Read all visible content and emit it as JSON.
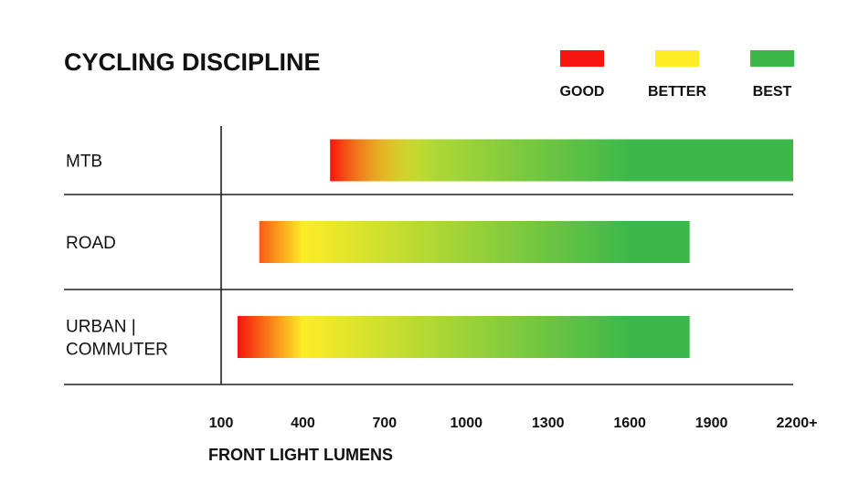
{
  "chart_data": {
    "type": "bar",
    "orientation": "horizontal",
    "title": "CYCLING DISCIPLINE",
    "xlabel": "FRONT LIGHT LUMENS",
    "ylabel": "",
    "xlim": [
      100,
      2200
    ],
    "x_ticks": [
      {
        "value": 100,
        "label": "100"
      },
      {
        "value": 400,
        "label": "400"
      },
      {
        "value": 700,
        "label": "700"
      },
      {
        "value": 1000,
        "label": "1000"
      },
      {
        "value": 1300,
        "label": "1300"
      },
      {
        "value": 1600,
        "label": "1600"
      },
      {
        "value": 1900,
        "label": "1900"
      },
      {
        "value": 2200,
        "label": "2200+"
      }
    ],
    "categories": [
      {
        "label_lines": [
          "MTB"
        ]
      },
      {
        "label_lines": [
          "ROAD"
        ]
      },
      {
        "label_lines": [
          "URBAN |",
          "COMMUTER"
        ]
      }
    ],
    "ranges": [
      {
        "start": 500,
        "end": 2200
      },
      {
        "start": 240,
        "end": 1820
      },
      {
        "start": 160,
        "end": 1820
      }
    ],
    "legend": {
      "placement": "top-right",
      "items": [
        {
          "label": "GOOD",
          "color": "#f5140e"
        },
        {
          "label": "BETTER",
          "color": "#fdec26"
        },
        {
          "label": "BEST",
          "color": "#3cb84a"
        }
      ]
    },
    "gradient": {
      "stops": [
        {
          "value": 160,
          "color": "#f5140e"
        },
        {
          "value": 400,
          "color": "#fdec26"
        },
        {
          "value": 1600,
          "color": "#3cb84a"
        }
      ]
    },
    "grid": false
  }
}
